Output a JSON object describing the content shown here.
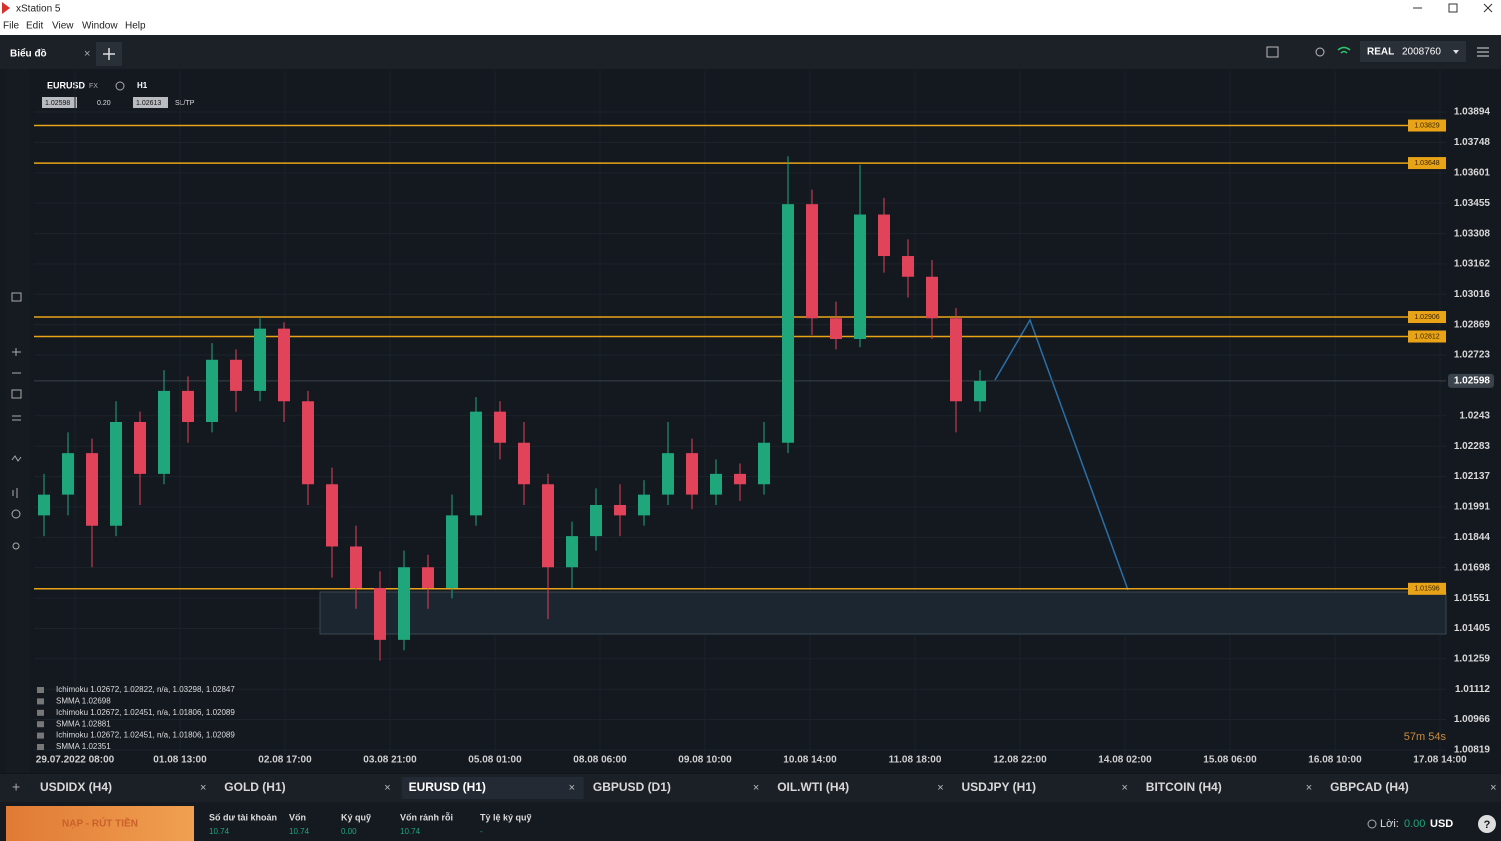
{
  "window": {
    "title": "xStation 5",
    "menu": [
      "File",
      "Edit",
      "View",
      "Window",
      "Help"
    ]
  },
  "toolbar": {
    "tab": "Biểu đồ",
    "account_type": "REAL",
    "account_id": "2008760"
  },
  "chart_header": {
    "symbol": "EURUSD",
    "market": "FX",
    "timeframe": "H1",
    "bid": "1.02598",
    "spread": "0.20",
    "ask": "1.02613",
    "sltp": "SL/TP"
  },
  "chart_data": {
    "type": "candlestick",
    "x_labels": [
      "29.07.2022 08:00",
      "01.08 13:00",
      "02.08 17:00",
      "03.08 21:00",
      "05.08 01:00",
      "08.08 06:00",
      "09.08 10:00",
      "10.08 14:00",
      "11.08 18:00",
      "12.08 22:00",
      "14.08 02:00",
      "15.08 06:00",
      "16.08 10:00",
      "17.08 14:00"
    ],
    "open": [
      1.0195,
      1.0205,
      1.0225,
      1.019,
      1.024,
      1.0215,
      1.0255,
      1.024,
      1.027,
      1.0255,
      1.0285,
      1.025,
      1.021,
      1.018,
      1.016,
      1.0135,
      1.017,
      1.016,
      1.0195,
      1.0245,
      1.023,
      1.021,
      1.017,
      1.0185,
      1.02,
      1.0195,
      1.0205,
      1.0225,
      1.0205,
      1.0215,
      1.021,
      1.023,
      1.0345,
      1.029,
      1.028,
      1.034,
      1.032,
      1.031,
      1.029,
      1.025
    ],
    "high": [
      1.0215,
      1.0235,
      1.0232,
      1.025,
      1.0245,
      1.0265,
      1.0262,
      1.0278,
      1.0275,
      1.029,
      1.0288,
      1.0255,
      1.0218,
      1.019,
      1.0168,
      1.0178,
      1.0176,
      1.0205,
      1.0252,
      1.025,
      1.024,
      1.0215,
      1.0192,
      1.0208,
      1.021,
      1.0212,
      1.024,
      1.0232,
      1.0222,
      1.022,
      1.024,
      1.0368,
      1.0352,
      1.0298,
      1.0364,
      1.0348,
      1.0328,
      1.0318,
      1.0295,
      1.0265
    ],
    "low": [
      1.0185,
      1.0195,
      1.017,
      1.0185,
      1.02,
      1.021,
      1.023,
      1.0235,
      1.0245,
      1.025,
      1.024,
      1.02,
      1.0165,
      1.015,
      1.0125,
      1.013,
      1.015,
      1.0155,
      1.019,
      1.0222,
      1.02,
      1.0145,
      1.016,
      1.0178,
      1.0185,
      1.019,
      1.02,
      1.0198,
      1.02,
      1.0202,
      1.0205,
      1.0225,
      1.0282,
      1.0275,
      1.0276,
      1.0312,
      1.03,
      1.028,
      1.0235,
      1.0245
    ],
    "close": [
      1.0205,
      1.0225,
      1.019,
      1.024,
      1.0215,
      1.0255,
      1.024,
      1.027,
      1.0255,
      1.0285,
      1.025,
      1.021,
      1.018,
      1.016,
      1.0135,
      1.017,
      1.016,
      1.0195,
      1.0245,
      1.023,
      1.021,
      1.017,
      1.0185,
      1.02,
      1.0195,
      1.0205,
      1.0225,
      1.0205,
      1.0215,
      1.021,
      1.023,
      1.0345,
      1.029,
      1.028,
      1.034,
      1.032,
      1.031,
      1.029,
      1.025,
      1.02598
    ],
    "up_color": "#1fa67a",
    "down_color": "#e0435a",
    "ylim": [
      1.00795,
      1.03952
    ],
    "yticks": [
      1.03894,
      1.03748,
      1.03601,
      1.03455,
      1.03308,
      1.03162,
      1.03016,
      1.02869,
      1.02723,
      1.0243,
      1.02283,
      1.02137,
      1.01991,
      1.01844,
      1.01698,
      1.01551,
      1.01405,
      1.01259,
      1.01112,
      1.00966,
      1.00819
    ],
    "current_price": 1.02598,
    "levels": [
      1.03829,
      1.03648,
      1.02906,
      1.02812,
      1.01596
    ],
    "level_color": "#e8a317",
    "indicators": [
      "Ichimoku 1.02672, 1.02822, n/a, 1.03298, 1.02847",
      "SMMA 1.02698",
      "Ichimoku 1.02672, 1.02451, n/a, 1.01806, 1.02089",
      "SMMA 1.02881",
      "Ichimoku 1.02672, 1.02451, n/a, 1.01806, 1.02089",
      "SMMA 1.02351"
    ],
    "countdown": "57m 54s"
  },
  "tabs": [
    "USDIDX (H4)",
    "GOLD (H1)",
    "EURUSD (H1)",
    "GBPUSD (D1)",
    "OIL.WTI (H4)",
    "USDJPY (H1)",
    "BITCOIN (H4)",
    "GBPCAD (H4)"
  ],
  "footer": {
    "button": "NẠP - RÚT TIỀN",
    "stats": [
      {
        "label": "Số dư tài khoản",
        "value": "10.74"
      },
      {
        "label": "Vốn",
        "value": "10.74"
      },
      {
        "label": "Ký quỹ",
        "value": "0.00"
      },
      {
        "label": "Vốn rảnh rỗi",
        "value": "10.74"
      },
      {
        "label": "Tỷ lệ ký quỹ",
        "value": "-"
      }
    ],
    "profit_label": "Lời:",
    "profit_value": "0.00",
    "currency": "USD"
  }
}
